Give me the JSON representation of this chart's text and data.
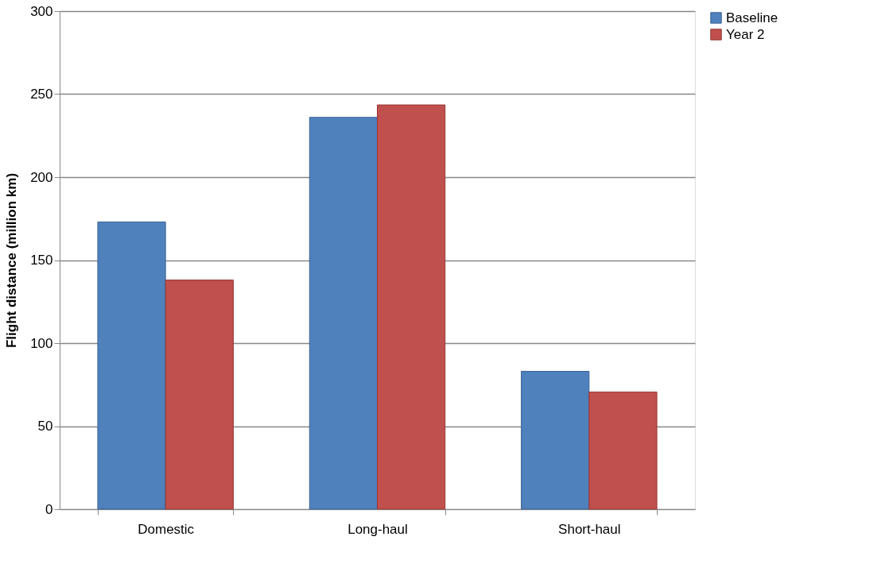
{
  "chart_data": {
    "type": "bar",
    "ylabel": "Flight distance (million km)",
    "categories": [
      "Domestic",
      "Long-haul",
      "Short-haul"
    ],
    "series": [
      {
        "name": "Baseline",
        "color": "#4f81bd",
        "values": [
          173,
          236,
          83
        ]
      },
      {
        "name": "Year 2",
        "color": "#c0504d",
        "values": [
          138,
          243.5,
          70.5
        ]
      }
    ],
    "ylim": [
      0,
      300
    ],
    "yticks": [
      0,
      50,
      100,
      150,
      200,
      250,
      300
    ],
    "grid": "y",
    "legend": "right"
  }
}
